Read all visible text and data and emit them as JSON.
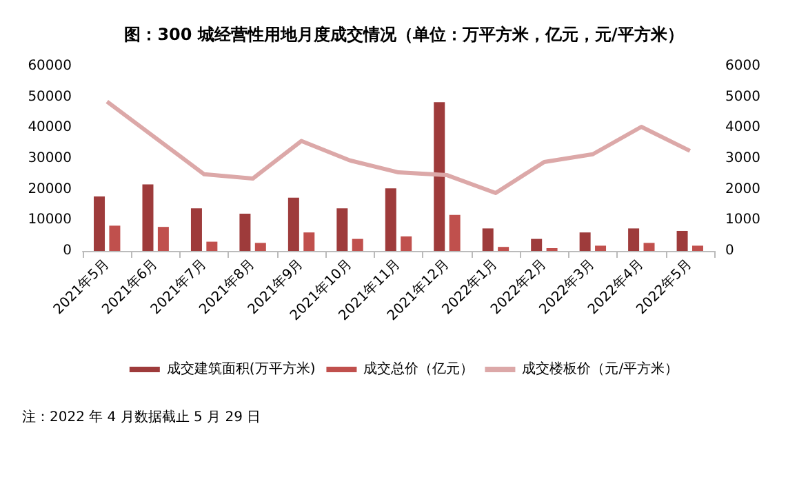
{
  "chart_data": {
    "type": "bar",
    "title": "图：300 城经营性用地月度成交情况（单位：万平方米，亿元，元/平方米）",
    "categories": [
      "2021年5月",
      "2021年6月",
      "2021年7月",
      "2021年8月",
      "2021年9月",
      "2021年10月",
      "2021年11月",
      "2021年12月",
      "2022年1月",
      "2022年2月",
      "2022年3月",
      "2022年4月",
      "2022年5月"
    ],
    "series": [
      {
        "name": "成交建筑面积(万平方米)",
        "color": "#9e3b3b",
        "values": [
          17700,
          21600,
          13800,
          12100,
          17300,
          13800,
          20300,
          48300,
          7300,
          3900,
          6000,
          7300,
          6500
        ]
      },
      {
        "name": "成交总价（亿元）",
        "color": "#c0504d",
        "values": [
          8200,
          7800,
          3000,
          2600,
          6000,
          3900,
          4700,
          11700,
          1300,
          900,
          1700,
          2600,
          1700
        ]
      },
      {
        "name": "成交楼板价（元/平方米）",
        "type": "line",
        "axis": "y2",
        "color": "#dca8a8",
        "values": [
          4850,
          3670,
          2490,
          2350,
          3570,
          2940,
          2550,
          2460,
          1880,
          2890,
          3140,
          4030,
          3250
        ]
      }
    ],
    "ylim": [
      0,
      60000
    ],
    "yticks": [
      0,
      10000,
      20000,
      30000,
      40000,
      50000,
      60000
    ],
    "y2lim": [
      0,
      6000
    ],
    "y2ticks": [
      0,
      1000,
      2000,
      3000,
      4000,
      5000,
      6000
    ],
    "grid": false,
    "legend": "bottom",
    "marker": "none",
    "line_style": "solid",
    "annotations": [
      "注：2022 年 4 月数据截止 5 月 29 日"
    ]
  }
}
